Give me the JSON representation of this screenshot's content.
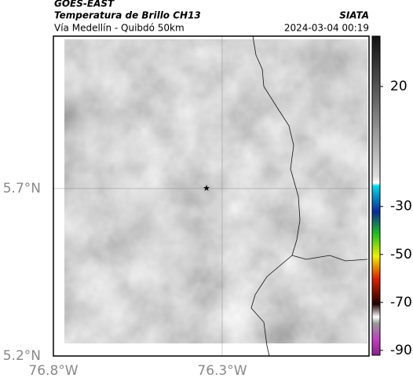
{
  "header": {
    "title": "GOES-EAST",
    "subtitle": "Temperatura de Brillo CH13",
    "source": "SIATA",
    "route": "Vía Medellín - Quibdó 50km",
    "timestamp": "2024-03-04 00:19"
  },
  "map": {
    "xlim": [
      -76.8,
      -75.865
    ],
    "ylim": [
      5.2,
      6.155
    ],
    "xticks": [
      {
        "value": -76.8,
        "label": "76.8°W"
      },
      {
        "value": -76.3,
        "label": "76.3°W"
      }
    ],
    "yticks": [
      {
        "value": 5.7,
        "label": "5.7°N"
      },
      {
        "value": 5.2,
        "label": "5.2°N"
      }
    ],
    "grid": true
  },
  "colorbar": {
    "lim": [
      -92,
      41
    ],
    "ticks": [
      20,
      -30,
      -50,
      -70,
      -90
    ]
  }
}
